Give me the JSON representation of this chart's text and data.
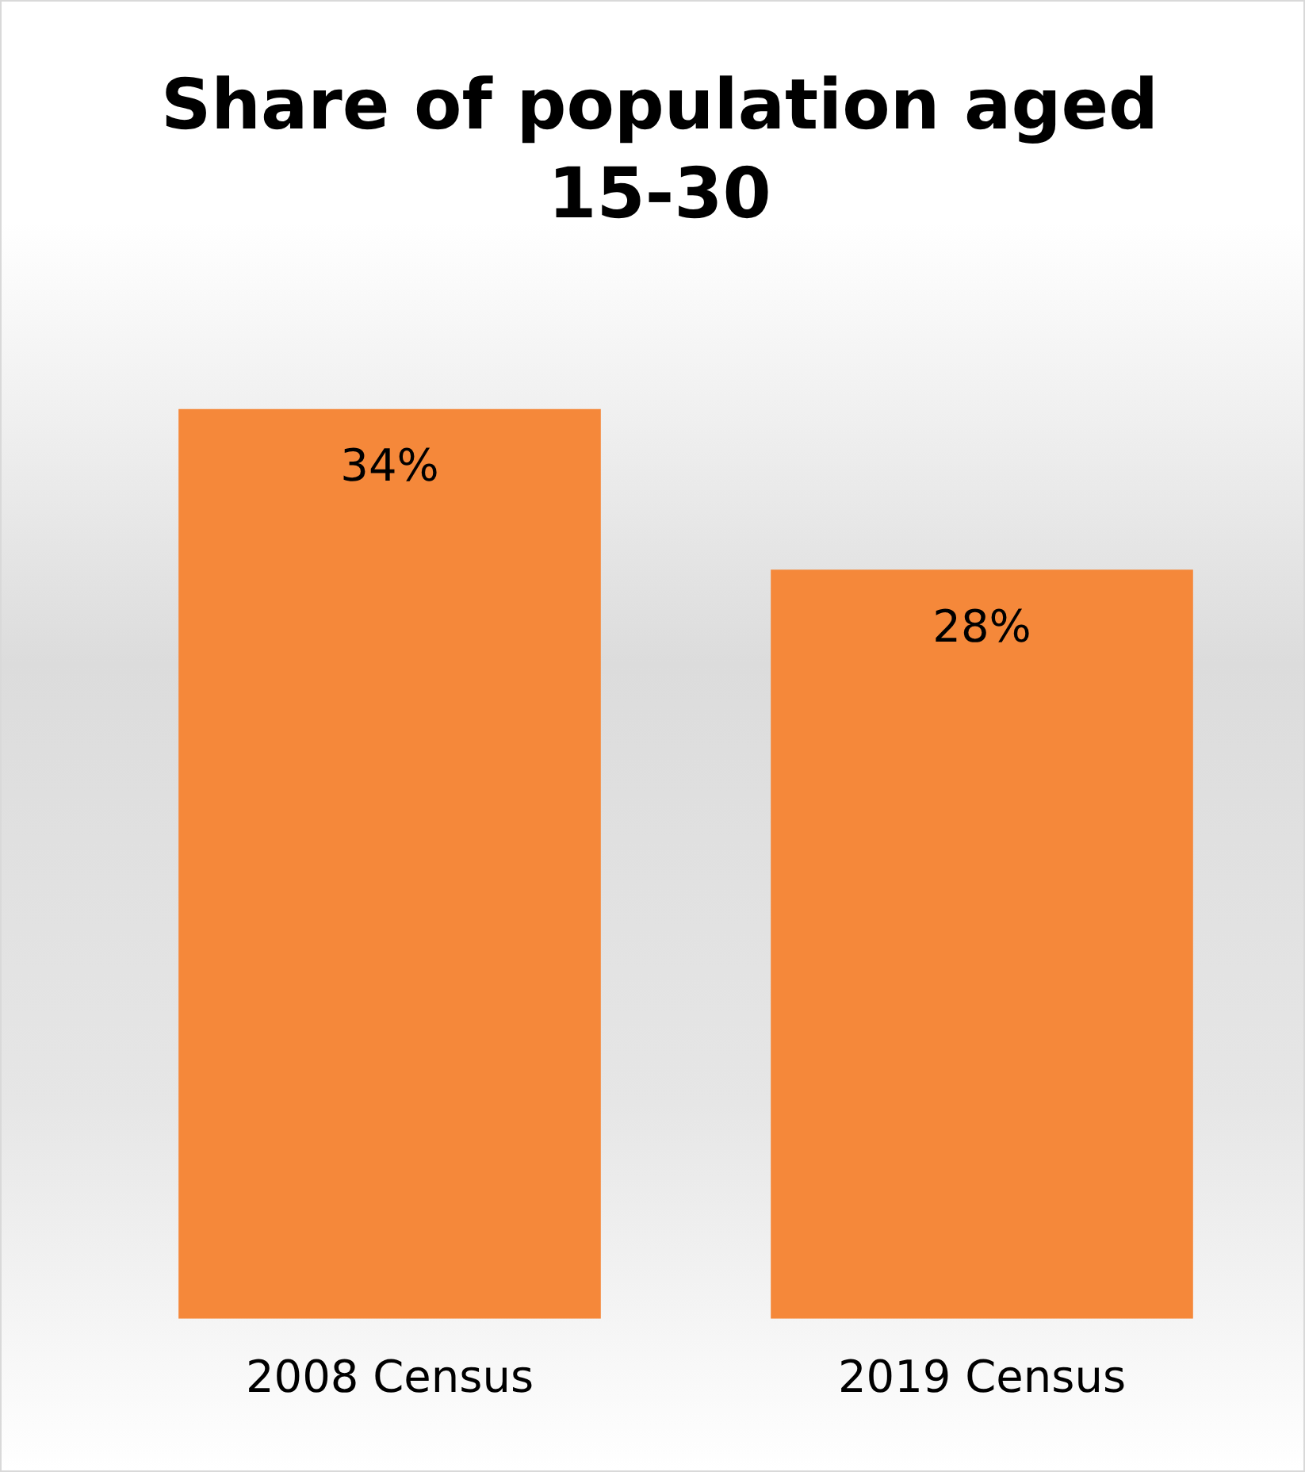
{
  "chart_data": {
    "type": "bar",
    "title": "Share of population aged 15-30",
    "categories": [
      "2008 Census",
      "2019 Census"
    ],
    "values": [
      34,
      28
    ],
    "color": "#f5883a",
    "value_labels": [
      "34%",
      "28%"
    ],
    "relative": false,
    "grid": false,
    "legend": false
  }
}
